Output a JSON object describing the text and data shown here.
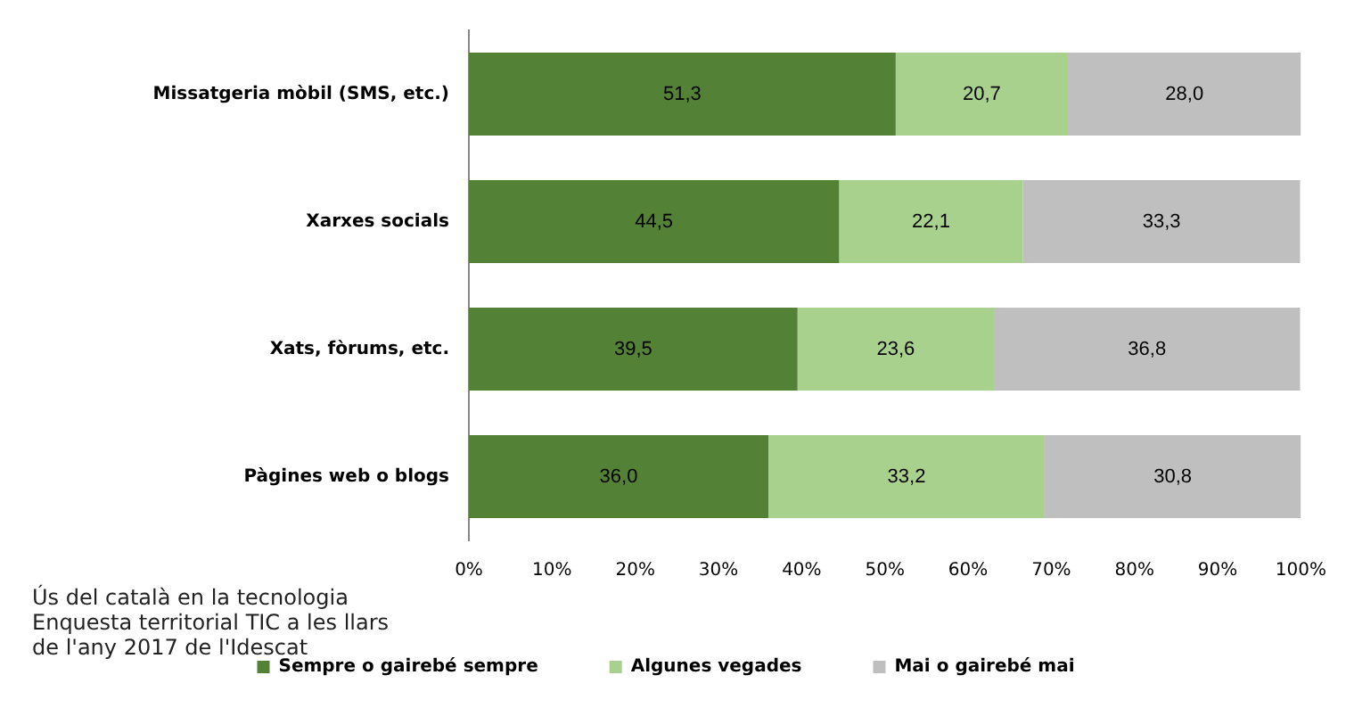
{
  "chart_data": {
    "type": "bar",
    "orientation": "horizontal",
    "stacked": true,
    "categories": [
      "Missatgeria mòbil (SMS, etc.)",
      "Xarxes socials",
      "Xats, fòrums, etc.",
      "Pàgines web o blogs"
    ],
    "series": [
      {
        "name": "Sempre o gairebé sempre",
        "color": "#538135",
        "values": [
          51.3,
          44.5,
          39.5,
          36.0
        ],
        "value_labels": [
          "51,3",
          "44,5",
          "39,5",
          "36,0"
        ]
      },
      {
        "name": "Algunes vegades",
        "color": "#a9d18e",
        "values": [
          20.7,
          22.1,
          23.6,
          33.2
        ],
        "value_labels": [
          "20,7",
          "22,1",
          "23,6",
          "33,2"
        ]
      },
      {
        "name": "Mai o gairebé mai",
        "color": "#bfbfbf",
        "values": [
          28.0,
          33.3,
          36.8,
          30.8
        ],
        "value_labels": [
          "28,0",
          "33,3",
          "36,8",
          "30,8"
        ]
      }
    ],
    "xlim": [
      0,
      100
    ],
    "xticks": [
      {
        "value": 0,
        "label": "0%"
      },
      {
        "value": 10,
        "label": "10%"
      },
      {
        "value": 20,
        "label": "20%"
      },
      {
        "value": 30,
        "label": "30%"
      },
      {
        "value": 40,
        "label": "40%"
      },
      {
        "value": 50,
        "label": "50%"
      },
      {
        "value": 60,
        "label": "60%"
      },
      {
        "value": 70,
        "label": "70%"
      },
      {
        "value": 80,
        "label": "80%"
      },
      {
        "value": 90,
        "label": "90%"
      },
      {
        "value": 100,
        "label": "100%"
      }
    ],
    "grid": false,
    "legend": "bottom",
    "annotations": [
      "Ús del català en la tecnologia\nEnquesta territorial TIC a les llars\nde l'any 2017 de l'Idescat"
    ]
  }
}
